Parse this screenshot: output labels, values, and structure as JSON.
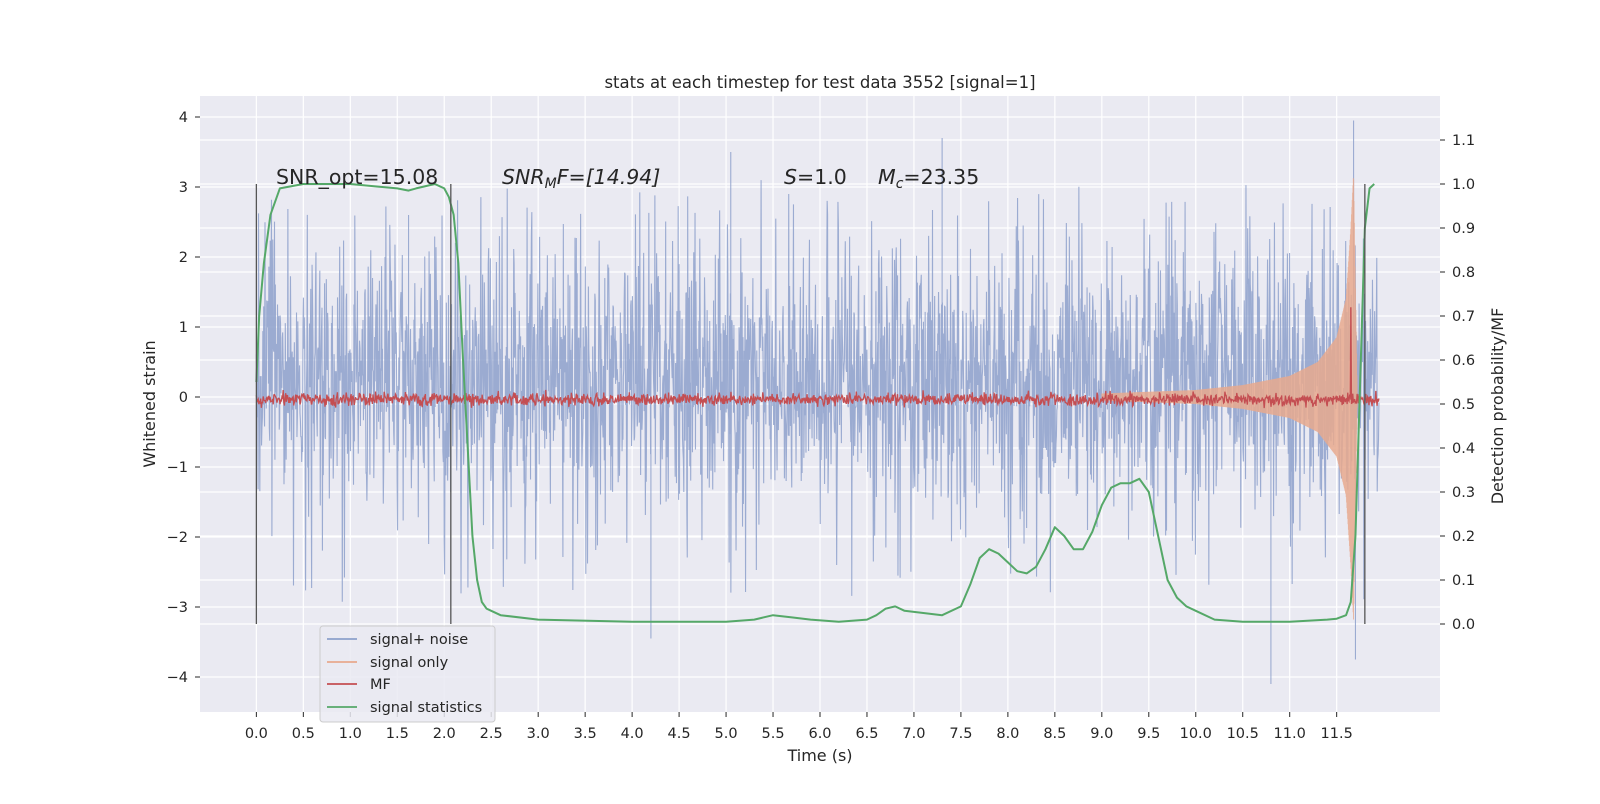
{
  "chart_data": {
    "type": "line",
    "title": "stats at each timestep for test data 3552 [signal=1]",
    "xlabel": "Time (s)",
    "ylabel": "Whitened strain",
    "y2label": "Detection probability/MF",
    "xlim": [
      -0.6,
      12.6
    ],
    "ylim": [
      -4.5,
      4.3
    ],
    "y2lim": [
      -0.2,
      1.2
    ],
    "x_ticks": [
      0.0,
      0.5,
      1.0,
      1.5,
      2.0,
      2.5,
      3.0,
      3.5,
      4.0,
      4.5,
      5.0,
      5.5,
      6.0,
      6.5,
      7.0,
      7.5,
      8.0,
      8.5,
      9.0,
      9.5,
      10.0,
      10.5,
      11.0,
      11.5
    ],
    "x_tick_labels": [
      "0.0",
      "0.5",
      "1.0",
      "1.5",
      "2.0",
      "2.5",
      "3.0",
      "3.5",
      "4.0",
      "4.5",
      "5.0",
      "5.5",
      "6.0",
      "6.5",
      "7.0",
      "7.5",
      "8.0",
      "8.5",
      "9.0",
      "9.5",
      "10.0",
      "10.5",
      "11.0",
      "11.5"
    ],
    "y_ticks": [
      -4,
      -3,
      -2,
      -1,
      0,
      1,
      2,
      3,
      4
    ],
    "y_tick_labels": [
      "−4",
      "−3",
      "−2",
      "−1",
      "0",
      "1",
      "2",
      "3",
      "4"
    ],
    "y2_ticks": [
      0.0,
      0.1,
      0.2,
      0.3,
      0.4,
      0.5,
      0.6,
      0.7,
      0.8,
      0.9,
      1.0,
      1.1
    ],
    "y2_tick_labels": [
      "0.0",
      "0.1",
      "0.2",
      "0.3",
      "0.4",
      "0.5",
      "0.6",
      "0.7",
      "0.8",
      "0.9",
      "1.0",
      "1.1"
    ],
    "grid": true,
    "legend_placement": "lower-left",
    "annotations": [
      "SNR_opt=15.08",
      "SNR_MF=[14.94]",
      "S=1.0",
      "M_c=23.35"
    ],
    "annotation_parts": {
      "snr_opt": "SNR_opt=15.08",
      "snr_mf_main": "SNR",
      "snr_mf_sub": "M",
      "snr_mf_rest": "F=[14.94]",
      "s_sym": "S",
      "s_rest": "=1.0",
      "mc_sym": "M",
      "mc_sub": "c",
      "mc_rest": "=23.35"
    },
    "vertical_markers": [
      0.0,
      2.07,
      11.8
    ],
    "series": [
      {
        "name": "signal+ noise",
        "color": "#8da0cb",
        "axis": "left",
        "t_range": [
          0.0,
          11.95
        ],
        "typical_range": [
          -1.4,
          1.9
        ],
        "extremes": [
          [
            1.62,
            2.6
          ],
          [
            5.05,
            3.5
          ],
          [
            7.3,
            3.7
          ],
          [
            11.68,
            3.95
          ],
          [
            4.2,
            -3.45
          ],
          [
            10.8,
            -4.1
          ],
          [
            11.7,
            -3.75
          ]
        ]
      },
      {
        "name": "signal only",
        "color": "#e8a98e",
        "axis": "left",
        "envelope": [
          [
            9.0,
            0.05
          ],
          [
            10.0,
            0.1
          ],
          [
            10.5,
            0.17
          ],
          [
            11.0,
            0.3
          ],
          [
            11.3,
            0.5
          ],
          [
            11.5,
            0.85
          ],
          [
            11.6,
            1.4
          ],
          [
            11.65,
            2.4
          ],
          [
            11.68,
            3.2
          ]
        ],
        "ringdown_end": 11.72
      },
      {
        "name": "MF",
        "color": "#c44e52",
        "axis": "right",
        "baseline": 0.51,
        "noise": 0.012,
        "spike": [
          11.65,
          0.72
        ]
      },
      {
        "name": "signal statistics",
        "color": "#55a868",
        "axis": "right",
        "x": [
          0.0,
          0.03,
          0.08,
          0.15,
          0.25,
          0.5,
          1.0,
          1.5,
          1.62,
          1.7,
          1.9,
          2.0,
          2.05,
          2.1,
          2.15,
          2.2,
          2.25,
          2.3,
          2.35,
          2.4,
          2.45,
          2.5,
          2.6,
          3.0,
          4.0,
          5.0,
          5.3,
          5.5,
          5.7,
          5.9,
          6.2,
          6.5,
          6.6,
          6.7,
          6.8,
          6.9,
          7.1,
          7.3,
          7.5,
          7.6,
          7.7,
          7.8,
          7.9,
          8.0,
          8.1,
          8.2,
          8.3,
          8.4,
          8.5,
          8.6,
          8.7,
          8.8,
          8.9,
          9.0,
          9.1,
          9.2,
          9.3,
          9.4,
          9.5,
          9.6,
          9.7,
          9.8,
          9.9,
          10.0,
          10.2,
          10.5,
          11.0,
          11.4,
          11.5,
          11.6,
          11.65,
          11.7,
          11.75,
          11.8,
          11.85,
          11.9
        ],
        "y": [
          0.55,
          0.7,
          0.82,
          0.93,
          0.99,
          1.0,
          1.0,
          0.99,
          0.985,
          0.99,
          1.0,
          0.99,
          0.97,
          0.93,
          0.82,
          0.6,
          0.4,
          0.2,
          0.1,
          0.05,
          0.035,
          0.03,
          0.02,
          0.01,
          0.005,
          0.005,
          0.01,
          0.02,
          0.015,
          0.01,
          0.005,
          0.01,
          0.02,
          0.035,
          0.04,
          0.03,
          0.025,
          0.02,
          0.04,
          0.09,
          0.15,
          0.17,
          0.16,
          0.14,
          0.12,
          0.115,
          0.13,
          0.17,
          0.22,
          0.2,
          0.17,
          0.17,
          0.21,
          0.27,
          0.31,
          0.32,
          0.32,
          0.33,
          0.3,
          0.2,
          0.1,
          0.06,
          0.04,
          0.03,
          0.01,
          0.005,
          0.005,
          0.01,
          0.012,
          0.02,
          0.05,
          0.2,
          0.55,
          0.9,
          0.99,
          1.0
        ]
      }
    ],
    "legend": [
      "signal+ noise",
      "signal only",
      "MF",
      "signal statistics"
    ]
  }
}
